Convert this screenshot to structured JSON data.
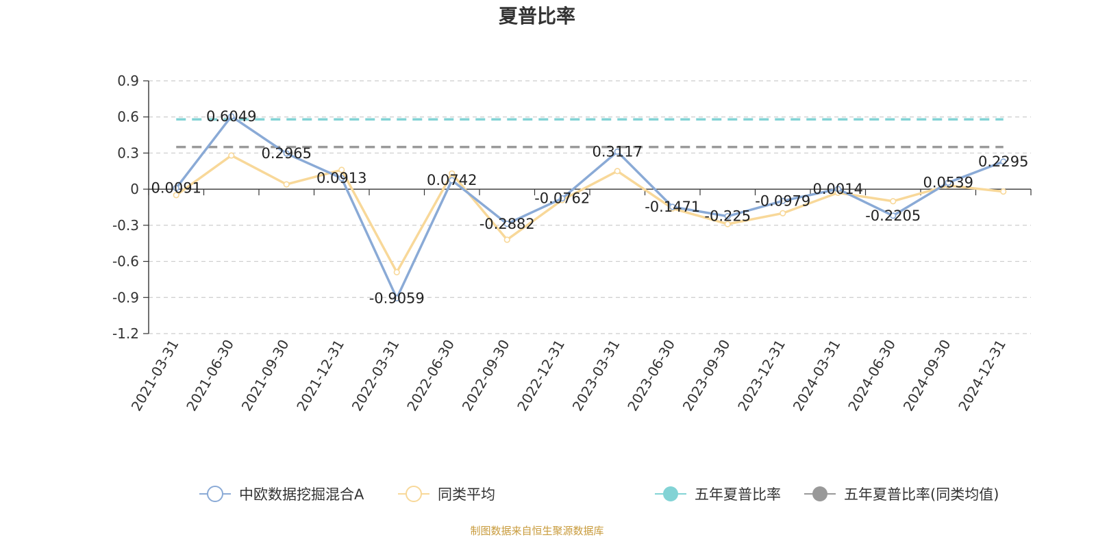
{
  "chart_data": {
    "type": "line",
    "title": "夏普比率",
    "xlabel": "",
    "ylabel": "",
    "categories": [
      "2021-03-31",
      "2021-06-30",
      "2021-09-30",
      "2021-12-31",
      "2022-03-31",
      "2022-06-30",
      "2022-09-30",
      "2022-12-31",
      "2023-03-31",
      "2023-06-30",
      "2023-09-30",
      "2023-12-31",
      "2024-03-31",
      "2024-06-30",
      "2024-09-30",
      "2024-12-31"
    ],
    "ylim": [
      -1.2,
      0.9
    ],
    "yticks": [
      0.9,
      0.6,
      0.3,
      0,
      -0.3,
      -0.6,
      -0.9,
      -1.2
    ],
    "ytick_labels": [
      "0.9",
      "0.6",
      "0.3",
      "0",
      "-0.3",
      "-0.6",
      "-0.9",
      "-1.2"
    ],
    "grid": "horizontal dashed",
    "legend_position": "bottom",
    "series": [
      {
        "name": "中欧数据挖掘混合A",
        "color": "#8aaad6",
        "values": [
          0.0091,
          0.6049,
          0.2965,
          0.0913,
          -0.9059,
          0.0742,
          -0.2882,
          -0.0762,
          0.3117,
          -0.1471,
          -0.225,
          -0.0979,
          0.0014,
          -0.2205,
          0.0539,
          0.2295
        ],
        "labels": [
          "0.0091",
          "0.6049",
          "0.2965",
          "0.0913",
          "-0.9059",
          "0.0742",
          "-0.2882",
          "-0.0762",
          "0.3117",
          "-0.1471",
          "-0.225",
          "-0.0979",
          "0.0014",
          "-0.2205",
          "0.0539",
          "0.2295"
        ]
      },
      {
        "name": "同类平均",
        "color": "#f8d899",
        "values": [
          -0.05,
          0.28,
          0.04,
          0.16,
          -0.69,
          0.13,
          -0.42,
          -0.09,
          0.15,
          -0.16,
          -0.29,
          -0.2,
          -0.03,
          -0.1,
          0.03,
          -0.02
        ]
      },
      {
        "name": "五年夏普比率",
        "color": "#82d3d5",
        "dashed": true,
        "values": [
          0.58,
          0.58,
          0.58,
          0.58,
          0.58,
          0.58,
          0.58,
          0.58,
          0.58,
          0.58,
          0.58,
          0.58,
          0.58,
          0.58,
          0.58,
          0.58
        ]
      },
      {
        "name": "五年夏普比率(同类均值)",
        "color": "#999999",
        "dashed": true,
        "values": [
          0.35,
          0.35,
          0.35,
          0.35,
          0.35,
          0.35,
          0.35,
          0.35,
          0.35,
          0.35,
          0.35,
          0.35,
          0.35,
          0.35,
          0.35,
          0.35
        ]
      }
    ],
    "source": "制图数据来自恒生聚源数据库"
  }
}
